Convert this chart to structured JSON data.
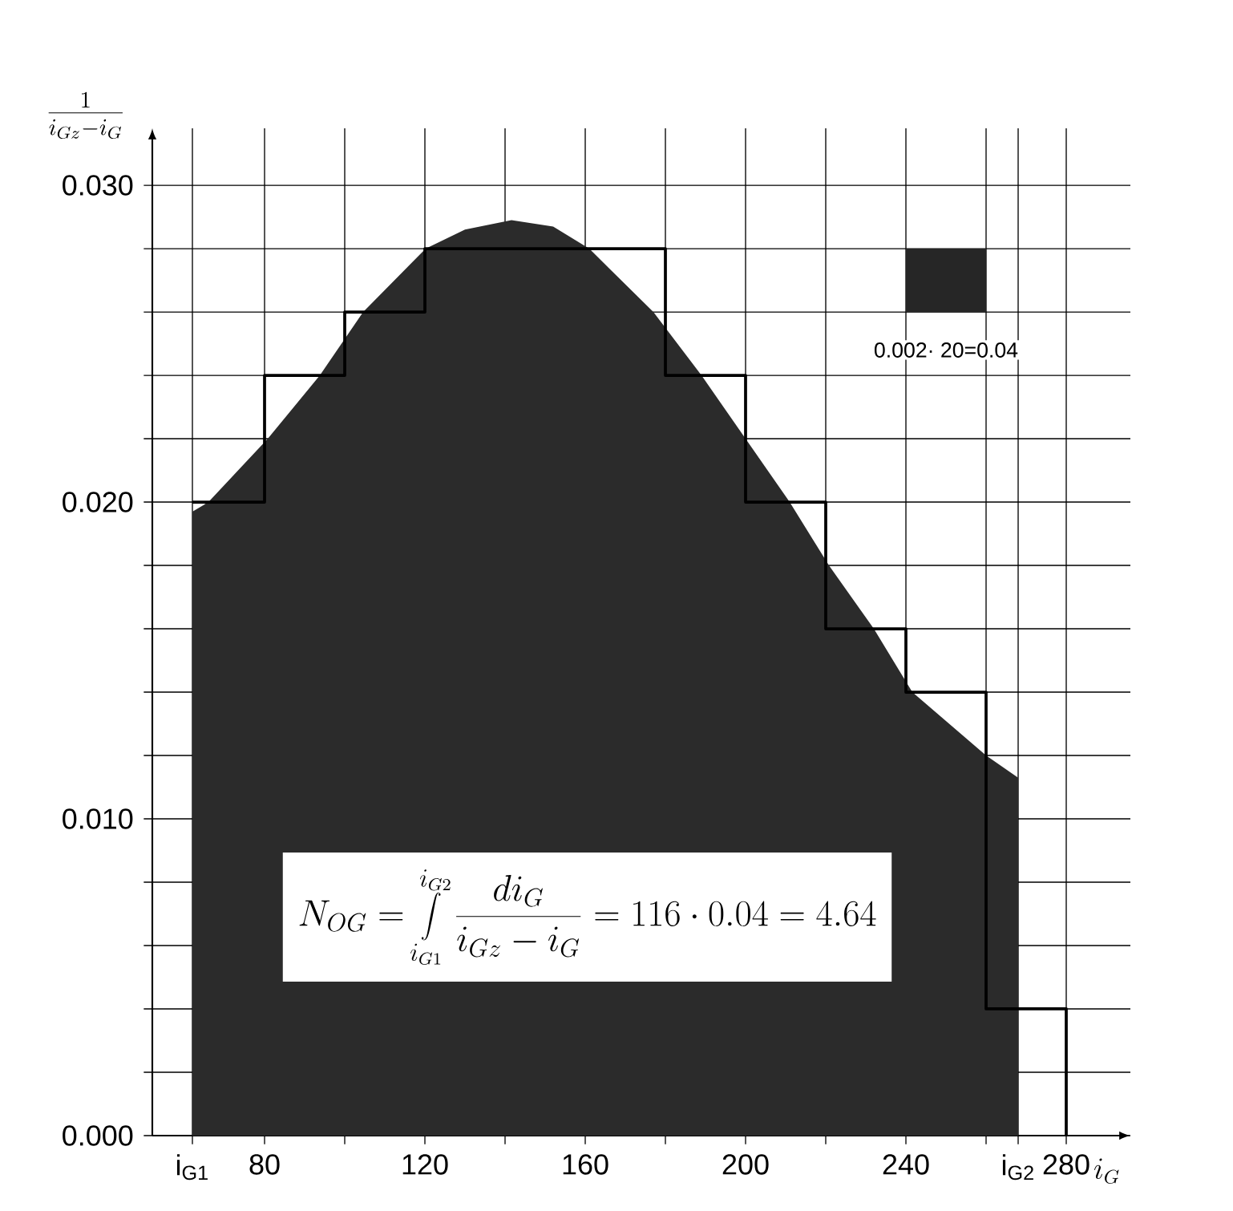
{
  "chart_data": {
    "type": "area",
    "xlabel": "i_G",
    "ylabel": "\\frac{1}{i_{Gz} - i_G}",
    "xlim": [
      52,
      296
    ],
    "ylim": [
      0,
      0.0318
    ],
    "xticks": [
      {
        "value": 62,
        "label": "i$_{G1}$"
      },
      80,
      {
        "value": 100,
        "label": null
      },
      120,
      {
        "value": 140,
        "label": null
      },
      160,
      {
        "value": 180,
        "label": null
      },
      200,
      {
        "value": 220,
        "label": null
      },
      240,
      {
        "value": 260,
        "label": null
      },
      {
        "value": 268,
        "label": "i$_{G2}$"
      },
      280
    ],
    "yticks": [
      {
        "value": 0,
        "label": "0.000"
      },
      {
        "value": 0.002,
        "label": null
      },
      {
        "value": 0.004,
        "label": null
      },
      {
        "value": 0.006,
        "label": null
      },
      {
        "value": 0.008,
        "label": null
      },
      {
        "value": 0.01,
        "label": "0.010"
      },
      {
        "value": 0.012,
        "label": null
      },
      {
        "value": 0.014,
        "label": null
      },
      {
        "value": 0.016,
        "label": null
      },
      {
        "value": 0.018,
        "label": null
      },
      {
        "value": 0.02,
        "label": "0.020"
      },
      {
        "value": 0.022,
        "label": null
      },
      {
        "value": 0.024,
        "label": null
      },
      {
        "value": 0.026,
        "label": null
      },
      {
        "value": 0.028,
        "label": null
      },
      {
        "value": 0.03,
        "label": "0.030"
      }
    ],
    "grid": true,
    "series": [
      {
        "color": "#2b2b2b",
        "x": [
          62,
          66,
          80.8,
          93.8,
          104.6,
          120.2,
          130,
          141.6,
          152,
          161,
          177,
          189,
          200,
          211,
          220.8,
          232,
          241.6,
          260,
          268
        ],
        "values": [
          0.0197,
          0.02,
          0.022,
          0.024,
          0.026,
          0.028,
          0.0286,
          0.0289,
          0.0287,
          0.028,
          0.026,
          0.024,
          0.022,
          0.02,
          0.018,
          0.016,
          0.014,
          0.012,
          0.0113
        ]
      },
      {
        "type": "step",
        "color": "#000000",
        "x": [
          62,
          80,
          100,
          120,
          180,
          200,
          220,
          240,
          260,
          280
        ],
        "values": [
          0.02,
          0.024,
          0.026,
          0.028,
          0.024,
          0.02,
          0.016,
          0.014,
          0.004,
          0
        ]
      }
    ],
    "annotations": [
      "N_{OG} = \\int\\limits_{i_{G1}}^{i_{G2}} \\frac{di_G}{i_{Gz} - i_G} = 116 \\cdot 0.04 = 4.64",
      "0.002· 20=0.04"
    ]
  }
}
